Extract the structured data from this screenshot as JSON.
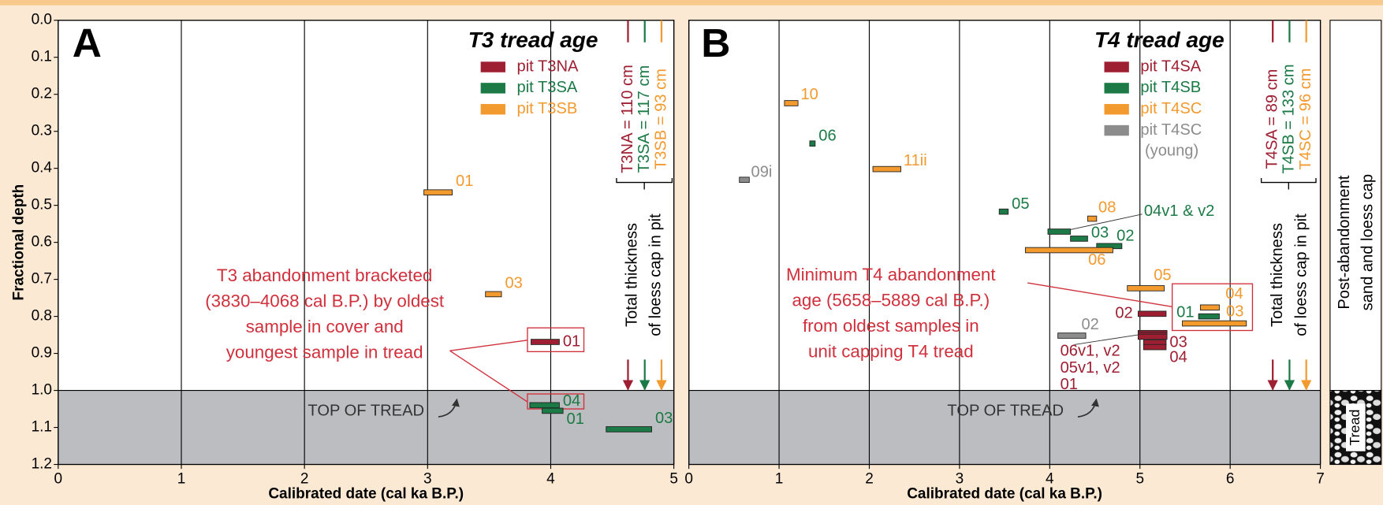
{
  "chart_data": [
    {
      "type": "range",
      "panel_label": "A",
      "title": "T3 tread age",
      "x_label": "Calibrated date (cal ka B.P.)",
      "y_label": "Fractional depth",
      "xlim": [
        0,
        5
      ],
      "ylim": [
        0,
        1.2
      ],
      "xticks": [
        0,
        1,
        2,
        3,
        4,
        5
      ],
      "yticks": [
        {
          "value": 0,
          "label": "0.0"
        },
        {
          "value": 0.1,
          "label": "0.1"
        },
        {
          "value": 0.2,
          "label": "0.2"
        },
        {
          "value": 0.3,
          "label": "0.3"
        },
        {
          "value": 0.4,
          "label": "0.4"
        },
        {
          "value": 0.5,
          "label": "0.5"
        },
        {
          "value": 0.6,
          "label": "0.6"
        },
        {
          "value": 0.7,
          "label": "0.7"
        },
        {
          "value": 0.8,
          "label": "0.8"
        },
        {
          "value": 0.9,
          "label": "0.9"
        },
        {
          "value": 1.0,
          "label": "1.0"
        },
        {
          "value": 1.1,
          "label": "1.1"
        },
        {
          "value": 1.2,
          "label": "1.2"
        }
      ],
      "grid": true,
      "tread_top": 1.0,
      "tread_label": "TOP OF TREAD",
      "series": [
        {
          "name": "pit T3NA",
          "color": "#9e1f32",
          "labels": [
            "01"
          ],
          "x0": [
            3.84
          ],
          "x1": [
            4.07
          ],
          "values": [
            0.869
          ]
        },
        {
          "name": "pit T3SA",
          "color": "#1b7a45",
          "labels": [
            "04",
            "01",
            "03"
          ],
          "x0": [
            3.83,
            3.93,
            4.45
          ],
          "x1": [
            4.07,
            4.1,
            4.82
          ],
          "values": [
            1.04,
            1.055,
            1.105
          ]
        },
        {
          "name": "pit T3SB",
          "color": "#f39a2f",
          "labels": [
            "01",
            "03"
          ],
          "x0": [
            2.97,
            3.47
          ],
          "x1": [
            3.2,
            3.6
          ],
          "values": [
            0.465,
            0.74
          ]
        }
      ],
      "thickness": [
        {
          "label": "T3NA = 110 cm",
          "color": "#9e1f32"
        },
        {
          "label": "T3SA = 117 cm",
          "color": "#1b7a45"
        },
        {
          "label": "T3SB = 93 cm",
          "color": "#f39a2f"
        }
      ],
      "thickness_caption": [
        "Total thickness",
        "of loess cap in pit"
      ],
      "annotation": [
        "T3 abandonment bracketed",
        "(3830–4068 cal B.P.) by oldest",
        "sample in cover and",
        "youngest sample in tread"
      ]
    },
    {
      "type": "range",
      "panel_label": "B",
      "title": "T4 tread age",
      "x_label": "Calibrated date (cal ka B.P.)",
      "xlim": [
        0,
        7
      ],
      "ylim": [
        0,
        1.2
      ],
      "xticks": [
        0,
        1,
        2,
        3,
        4,
        5,
        6,
        7
      ],
      "grid": true,
      "tread_top": 1.0,
      "tread_label": "TOP OF TREAD",
      "series": [
        {
          "name": "pit T4SA",
          "color": "#9e1f32",
          "labels": [
            "02",
            "03",
            "04",
            "06v1, v2",
            "05v1, v2",
            "01"
          ],
          "x0": [
            4.98,
            5.04,
            5.04,
            4.98,
            4.98,
            4.98
          ],
          "x1": [
            5.29,
            5.29,
            5.29,
            5.3,
            5.3,
            5.3
          ],
          "values": [
            0.793,
            0.871,
            0.883,
            0.845,
            0.85,
            0.855
          ]
        },
        {
          "name": "pit T4SB",
          "color": "#1b7a45",
          "labels": [
            "06",
            "05",
            "04v1 & v2",
            "03",
            "02",
            "01"
          ],
          "x0": [
            1.34,
            3.44,
            3.98,
            4.23,
            4.52,
            5.65
          ],
          "x1": [
            1.4,
            3.54,
            4.23,
            4.42,
            4.8,
            5.88
          ],
          "values": [
            0.333,
            0.517,
            0.571,
            0.59,
            0.61,
            0.8
          ]
        },
        {
          "name": "pit T4SC",
          "color": "#f39a2f",
          "labels": [
            "10",
            "11ii",
            "08",
            "06",
            "05",
            "04",
            "03"
          ],
          "x0": [
            1.06,
            2.04,
            4.42,
            3.73,
            4.86,
            5.67,
            5.47
          ],
          "x1": [
            1.21,
            2.35,
            4.52,
            4.7,
            5.27,
            5.88,
            6.18
          ],
          "values": [
            0.224,
            0.402,
            0.536,
            0.621,
            0.724,
            0.776,
            0.819
          ]
        },
        {
          "name": "pit T4SC",
          "subname": "(young)",
          "color": "#8c8c8c",
          "labels": [
            "09i",
            "02"
          ],
          "x0": [
            0.56,
            4.09
          ],
          "x1": [
            0.67,
            4.4
          ],
          "values": [
            0.431,
            0.852
          ]
        }
      ],
      "thickness": [
        {
          "label": "T4SA = 89 cm",
          "color": "#9e1f32"
        },
        {
          "label": "T4SB = 133 cm",
          "color": "#1b7a45"
        },
        {
          "label": "T4SC = 96 cm",
          "color": "#f39a2f"
        }
      ],
      "thickness_caption": [
        "Total thickness",
        "of loess cap in pit"
      ],
      "annotation": [
        "Minimum T4 abandonment",
        "age (5658–5889 cal B.P.)",
        "from oldest samples in",
        "unit capping T4 tread"
      ]
    }
  ],
  "side_column": {
    "upper": [
      "Post-abandonment",
      "sand and loess cap"
    ],
    "lower": "Tread"
  }
}
